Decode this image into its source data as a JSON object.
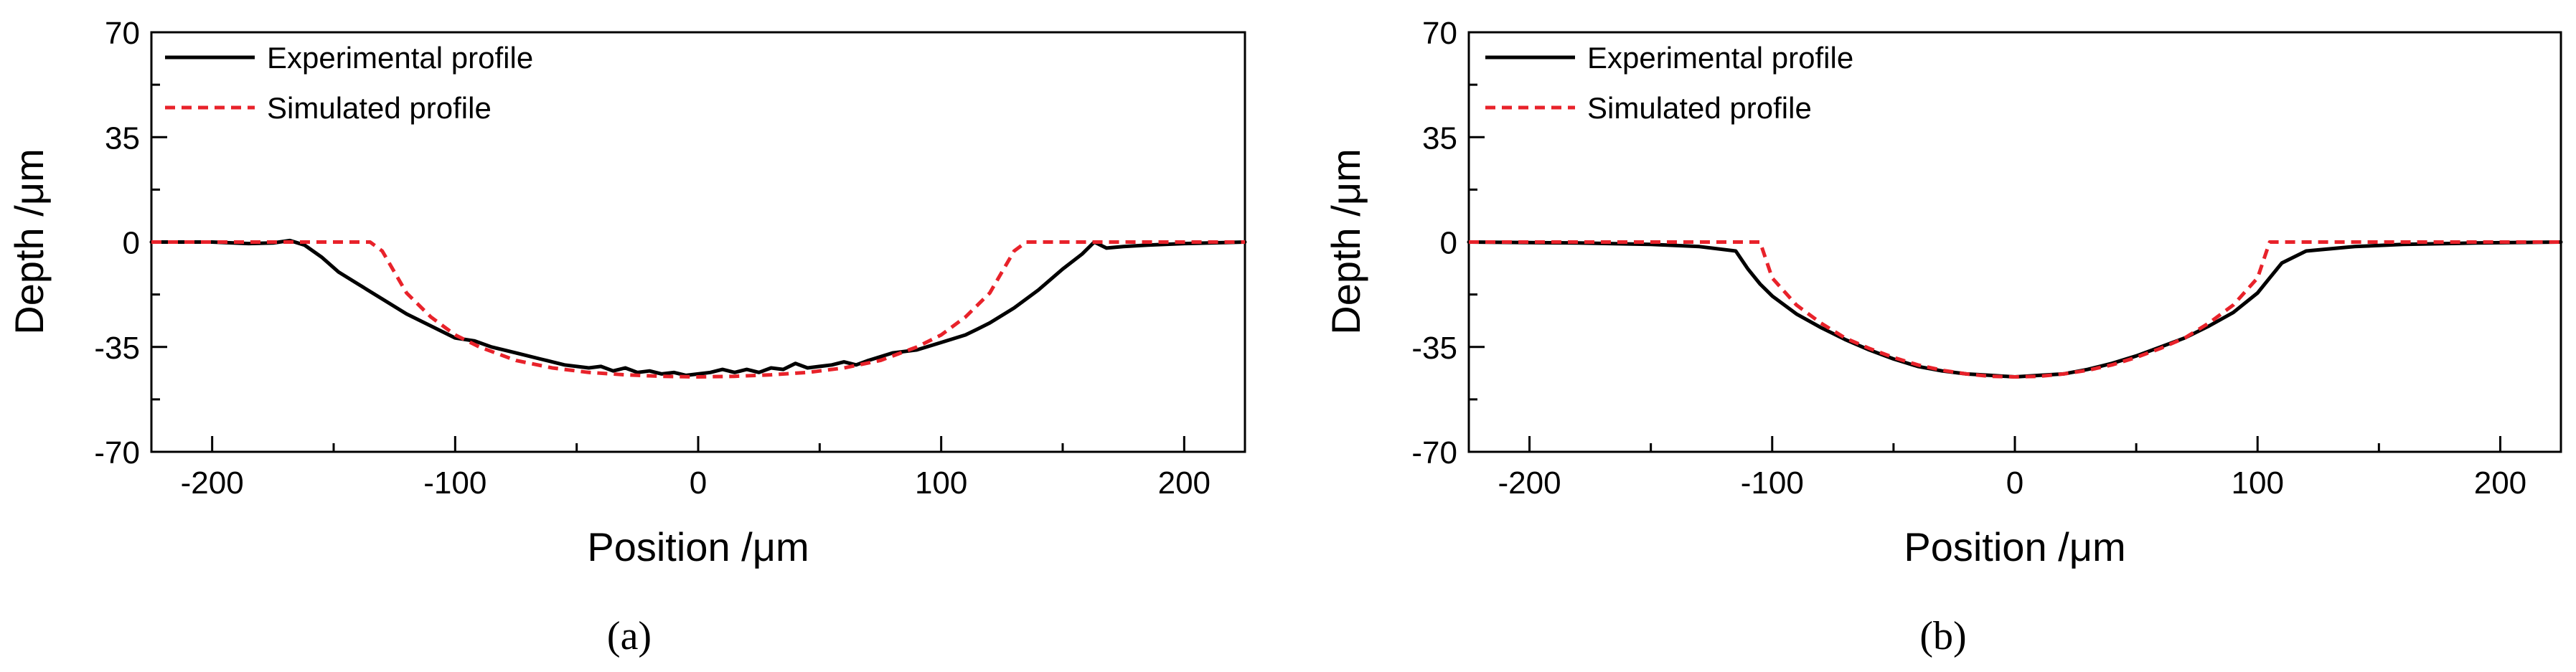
{
  "chart_data": [
    {
      "type": "line",
      "panel_label": "(a)",
      "xlabel": "Position /μm",
      "ylabel": "Depth /μm",
      "xlim": [
        -225,
        225
      ],
      "ylim": [
        -70,
        70
      ],
      "xticks": [
        -200,
        -100,
        0,
        100,
        200
      ],
      "xtick_labels": [
        "-200",
        "-100",
        "0",
        "100",
        "200"
      ],
      "yticks": [
        -70,
        -35,
        0,
        35,
        70
      ],
      "ytick_labels": [
        "-70",
        "-35",
        "0",
        "35",
        "70"
      ],
      "grid": false,
      "legend_position": "top-left",
      "series": [
        {
          "name": "Experimental profile",
          "style": "solid",
          "color": "#000000",
          "x": [
            -225,
            -200,
            -185,
            -175,
            -168,
            -162,
            -155,
            -148,
            -140,
            -130,
            -120,
            -110,
            -100,
            -92,
            -85,
            -75,
            -65,
            -55,
            -45,
            -40,
            -35,
            -30,
            -25,
            -20,
            -15,
            -10,
            -5,
            0,
            5,
            10,
            15,
            20,
            25,
            30,
            35,
            40,
            45,
            50,
            55,
            60,
            65,
            70,
            80,
            90,
            100,
            110,
            115,
            120,
            130,
            140,
            150,
            158,
            163,
            168,
            175,
            185,
            200,
            225
          ],
          "y": [
            0,
            0,
            -0.5,
            -0.3,
            0.5,
            -1,
            -5,
            -10,
            -14,
            -19,
            -24,
            -28,
            -32,
            -33,
            -35,
            -37,
            -39,
            -41,
            -42,
            -41.5,
            -43,
            -42,
            -43.5,
            -43,
            -44,
            -43.5,
            -44.5,
            -44,
            -43.5,
            -42.5,
            -43.5,
            -42.5,
            -43.5,
            -42,
            -42.5,
            -40.5,
            -42,
            -41.5,
            -41,
            -40,
            -41,
            -39.5,
            -37,
            -36,
            -33.5,
            -31,
            -29,
            -27,
            -22,
            -16,
            -9,
            -4,
            0,
            -2,
            -1.5,
            -1,
            -0.5,
            0
          ]
        },
        {
          "name": "Simulated profile",
          "style": "dashed",
          "color": "#e8222a",
          "x": [
            -225,
            -135,
            -130,
            -120,
            -110,
            -100,
            -90,
            -75,
            -60,
            -45,
            -30,
            -15,
            0,
            15,
            30,
            45,
            60,
            75,
            90,
            100,
            110,
            120,
            130,
            135,
            225
          ],
          "y": [
            0,
            0,
            -3,
            -17,
            -25,
            -31,
            -35,
            -39.5,
            -42,
            -43.5,
            -44.3,
            -44.8,
            -45,
            -44.8,
            -44.3,
            -43.5,
            -42,
            -39.5,
            -35,
            -31,
            -25,
            -17,
            -3,
            0,
            0
          ]
        }
      ]
    },
    {
      "type": "line",
      "panel_label": "(b)",
      "xlabel": "Position /μm",
      "ylabel": "Depth /μm",
      "xlim": [
        -225,
        225
      ],
      "ylim": [
        -70,
        70
      ],
      "xticks": [
        -200,
        -100,
        0,
        100,
        200
      ],
      "xtick_labels": [
        "-200",
        "-100",
        "0",
        "100",
        "200"
      ],
      "yticks": [
        -70,
        -35,
        0,
        35,
        70
      ],
      "ytick_labels": [
        "-70",
        "-35",
        "0",
        "35",
        "70"
      ],
      "grid": false,
      "legend_position": "top-left",
      "series": [
        {
          "name": "Experimental profile",
          "style": "solid",
          "color": "#000000",
          "x": [
            -225,
            -180,
            -150,
            -130,
            -115,
            -110,
            -105,
            -100,
            -90,
            -80,
            -70,
            -60,
            -50,
            -40,
            -30,
            -20,
            -10,
            0,
            10,
            20,
            30,
            40,
            50,
            60,
            70,
            80,
            90,
            100,
            105,
            110,
            120,
            140,
            160,
            190,
            225
          ],
          "y": [
            0,
            -0.3,
            -0.8,
            -1.5,
            -3,
            -9,
            -14,
            -18,
            -24,
            -28.5,
            -32.5,
            -36,
            -39,
            -41.5,
            -43,
            -44,
            -44.5,
            -45,
            -44.5,
            -44,
            -42.5,
            -40.5,
            -38,
            -35,
            -32,
            -28,
            -23.5,
            -17,
            -12,
            -7,
            -3,
            -1.5,
            -0.8,
            -0.3,
            0
          ]
        },
        {
          "name": "Simulated profile",
          "style": "dashed",
          "color": "#e8222a",
          "x": [
            -225,
            -105,
            -100,
            -90,
            -80,
            -70,
            -60,
            -50,
            -40,
            -30,
            -20,
            -10,
            0,
            10,
            20,
            30,
            40,
            50,
            60,
            70,
            80,
            90,
            100,
            105,
            225
          ],
          "y": [
            0,
            0,
            -12,
            -21,
            -27,
            -32,
            -35.5,
            -38.5,
            -41,
            -42.8,
            -44,
            -44.8,
            -45,
            -44.8,
            -44,
            -42.8,
            -41,
            -38.5,
            -35.5,
            -32,
            -27,
            -21,
            -12,
            0,
            0
          ]
        }
      ]
    }
  ]
}
